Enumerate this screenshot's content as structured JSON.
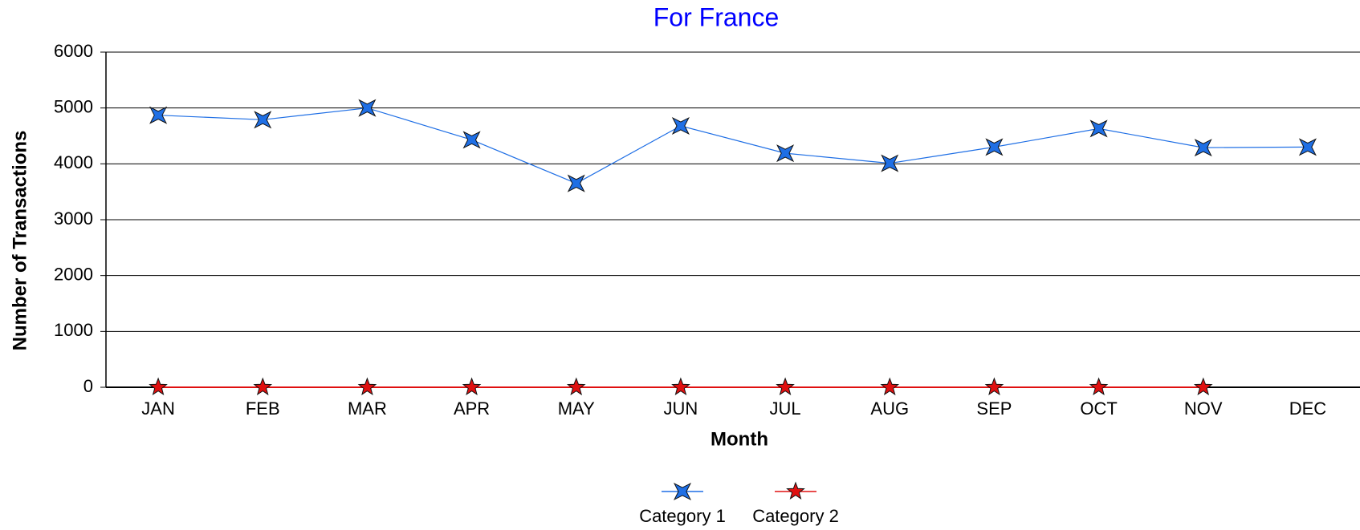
{
  "chart_data": {
    "type": "line",
    "title": "For France",
    "x_label": "Month",
    "y_label": "Number of Transactions",
    "categories": [
      "JAN",
      "FEB",
      "MAR",
      "APR",
      "MAY",
      "JUN",
      "JUL",
      "AUG",
      "SEP",
      "OCT",
      "NOV",
      "DEC"
    ],
    "series": [
      {
        "name": "Category 1",
        "color": "#1f6fe5",
        "marker": "4-point-star",
        "values": [
          4870,
          4790,
          5000,
          4430,
          3650,
          4680,
          4190,
          4010,
          4300,
          4630,
          4290,
          4300
        ]
      },
      {
        "name": "Category 2",
        "color": "#e01010",
        "marker": "5-point-star",
        "values": [
          0,
          0,
          0,
          0,
          0,
          0,
          0,
          0,
          0,
          0,
          0,
          null
        ]
      }
    ],
    "ylim": [
      0,
      6000
    ],
    "yticks": [
      0,
      1000,
      2000,
      3000,
      4000,
      5000,
      6000
    ],
    "grid": true,
    "legend": "bottom"
  }
}
